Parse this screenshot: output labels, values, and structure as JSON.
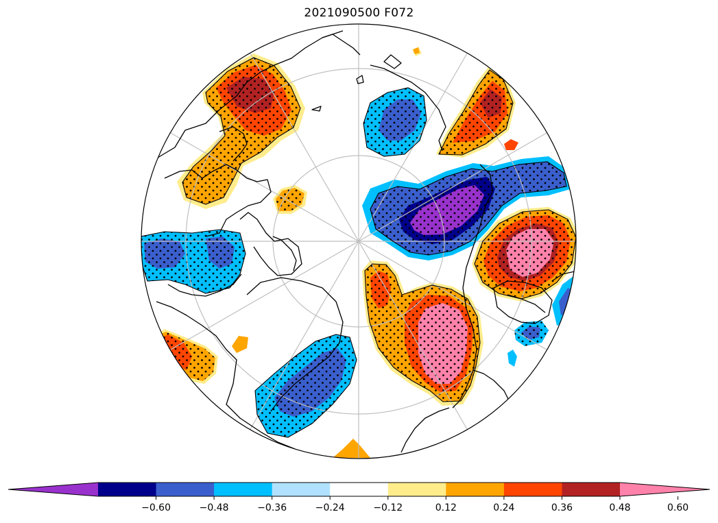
{
  "title": "2021090500 F072",
  "colorbar": {
    "colors": [
      "#9932cc",
      "#00008b",
      "#3a5fcd",
      "#00bfff",
      "#b0e2ff",
      "#ffffff",
      "#ffec8b",
      "#ffa500",
      "#ff4500",
      "#b22222",
      "#ff82ab"
    ],
    "tick_labels": [
      "−0.60",
      "−0.48",
      "−0.36",
      "−0.24",
      "−0.12",
      "0.12",
      "0.24",
      "0.36",
      "0.48",
      "0.60"
    ],
    "extend": "both"
  },
  "map": {
    "projection": "north-polar-stereographic",
    "graticule": true,
    "stippling": "significance dots",
    "contour_line_color": "#000000",
    "graticule_color": "#bfbfbf",
    "coastline_color": "#000000"
  }
}
